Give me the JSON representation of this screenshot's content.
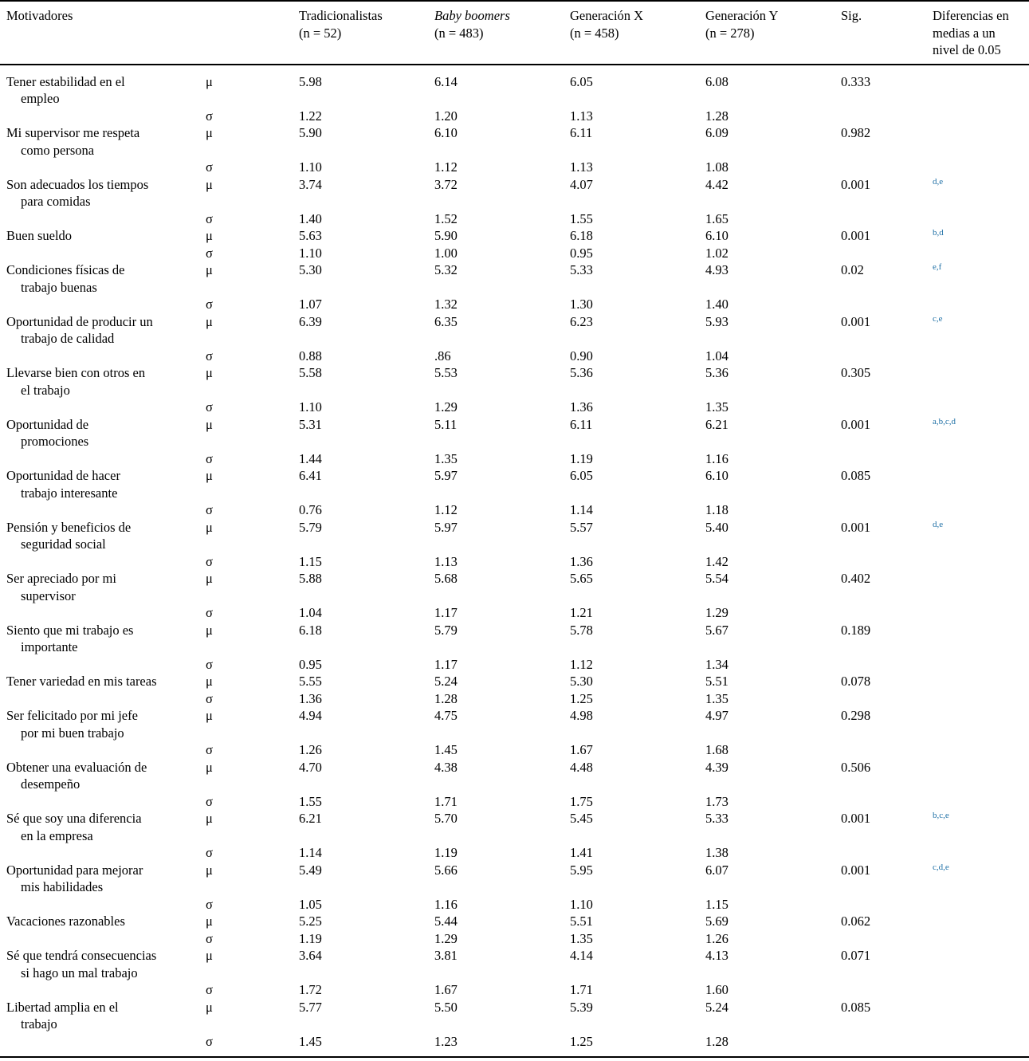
{
  "colors": {
    "accent_blue": "#1d6fa5",
    "text": "#000000",
    "background": "#ffffff"
  },
  "table": {
    "header": {
      "motivators": "Motivadores",
      "columns": [
        {
          "name": "Tradicionalistas",
          "n": "(n = 52)",
          "italic": false
        },
        {
          "name": "Baby boomers",
          "n": "(n = 483)",
          "italic": true
        },
        {
          "name": "Generación X",
          "n": "(n = 458)",
          "italic": false
        },
        {
          "name": "Generación Y",
          "n": "(n = 278)",
          "italic": false
        }
      ],
      "sig": "Sig.",
      "diff_lines": [
        "Diferencias en",
        "medias a un",
        "nivel de 0.05"
      ]
    },
    "symbols": {
      "mean": "μ",
      "sd": "σ"
    },
    "rows": [
      {
        "label": [
          "Tener estabilidad en el",
          "empleo"
        ],
        "mu": [
          "5.98",
          "6.14",
          "6.05",
          "6.08"
        ],
        "sigma": [
          "1.22",
          "1.20",
          "1.13",
          "1.28"
        ],
        "sig": "0.333",
        "diff": ""
      },
      {
        "label": [
          "Mi supervisor me respeta",
          "como persona"
        ],
        "mu": [
          "5.90",
          "6.10",
          "6.11",
          "6.09"
        ],
        "sigma": [
          "1.10",
          "1.12",
          "1.13",
          "1.08"
        ],
        "sig": "0.982",
        "diff": ""
      },
      {
        "label": [
          "Son adecuados los tiempos",
          "para comidas"
        ],
        "mu": [
          "3.74",
          "3.72",
          "4.07",
          "4.42"
        ],
        "sigma": [
          "1.40",
          "1.52",
          "1.55",
          "1.65"
        ],
        "sig": "0.001",
        "diff": "d,e"
      },
      {
        "label": [
          "Buen sueldo"
        ],
        "mu": [
          "5.63",
          "5.90",
          "6.18",
          "6.10"
        ],
        "sigma": [
          "1.10",
          "1.00",
          "0.95",
          "1.02"
        ],
        "sig": "0.001",
        "diff": "b,d"
      },
      {
        "label": [
          "Condiciones físicas de",
          "trabajo buenas"
        ],
        "mu": [
          "5.30",
          "5.32",
          "5.33",
          "4.93"
        ],
        "sigma": [
          "1.07",
          "1.32",
          "1.30",
          "1.40"
        ],
        "sig": "0.02",
        "diff": "e,f"
      },
      {
        "label": [
          "Oportunidad de producir un",
          "trabajo de calidad"
        ],
        "mu": [
          "6.39",
          "6.35",
          "6.23",
          "5.93"
        ],
        "sigma": [
          "0.88",
          ".86",
          "0.90",
          "1.04"
        ],
        "sig": "0.001",
        "diff": "c,e"
      },
      {
        "label": [
          "Llevarse bien con otros en",
          "el trabajo"
        ],
        "mu": [
          "5.58",
          "5.53",
          "5.36",
          "5.36"
        ],
        "sigma": [
          "1.10",
          "1.29",
          "1.36",
          "1.35"
        ],
        "sig": "0.305",
        "diff": ""
      },
      {
        "label": [
          "Oportunidad de",
          "promociones"
        ],
        "mu": [
          "5.31",
          "5.11",
          "6.11",
          "6.21"
        ],
        "sigma": [
          "1.44",
          "1.35",
          "1.19",
          "1.16"
        ],
        "sig": "0.001",
        "diff": "a,b,c,d"
      },
      {
        "label": [
          "Oportunidad de hacer",
          "trabajo interesante"
        ],
        "mu": [
          "6.41",
          "5.97",
          "6.05",
          "6.10"
        ],
        "sigma": [
          "0.76",
          "1.12",
          "1.14",
          "1.18"
        ],
        "sig": "0.085",
        "diff": ""
      },
      {
        "label": [
          "Pensión y beneficios de",
          "seguridad social"
        ],
        "mu": [
          "5.79",
          "5.97",
          "5.57",
          "5.40"
        ],
        "sigma": [
          "1.15",
          "1.13",
          "1.36",
          "1.42"
        ],
        "sig": "0.001",
        "diff": "d,e"
      },
      {
        "label": [
          "Ser apreciado por mi",
          "supervisor"
        ],
        "mu": [
          "5.88",
          "5.68",
          "5.65",
          "5.54"
        ],
        "sigma": [
          "1.04",
          "1.17",
          "1.21",
          "1.29"
        ],
        "sig": "0.402",
        "diff": ""
      },
      {
        "label": [
          "Siento que mi trabajo es",
          "importante"
        ],
        "mu": [
          "6.18",
          "5.79",
          "5.78",
          "5.67"
        ],
        "sigma": [
          "0.95",
          "1.17",
          "1.12",
          "1.34"
        ],
        "sig": "0.189",
        "diff": ""
      },
      {
        "label": [
          "Tener variedad en mis tareas"
        ],
        "mu": [
          "5.55",
          "5.24",
          "5.30",
          "5.51"
        ],
        "sigma": [
          "1.36",
          "1.28",
          "1.25",
          "1.35"
        ],
        "sig": "0.078",
        "diff": ""
      },
      {
        "label": [
          "Ser felicitado por mi jefe",
          "por mi buen trabajo"
        ],
        "mu": [
          "4.94",
          "4.75",
          "4.98",
          "4.97"
        ],
        "sigma": [
          "1.26",
          "1.45",
          "1.67",
          "1.68"
        ],
        "sig": "0.298",
        "diff": ""
      },
      {
        "label": [
          "Obtener una evaluación de",
          "desempeño"
        ],
        "mu": [
          "4.70",
          "4.38",
          "4.48",
          "4.39"
        ],
        "sigma": [
          "1.55",
          "1.71",
          "1.75",
          "1.73"
        ],
        "sig": "0.506",
        "diff": ""
      },
      {
        "label": [
          "Sé que soy una diferencia",
          "en la empresa"
        ],
        "mu": [
          "6.21",
          "5.70",
          "5.45",
          "5.33"
        ],
        "sigma": [
          "1.14",
          "1.19",
          "1.41",
          "1.38"
        ],
        "sig": "0.001",
        "diff": "b,c,e"
      },
      {
        "label": [
          "Oportunidad para mejorar",
          "mis habilidades"
        ],
        "mu": [
          "5.49",
          "5.66",
          "5.95",
          "6.07"
        ],
        "sigma": [
          "1.05",
          "1.16",
          "1.10",
          "1.15"
        ],
        "sig": "0.001",
        "diff": "c,d,e"
      },
      {
        "label": [
          "Vacaciones razonables"
        ],
        "mu": [
          "5.25",
          "5.44",
          "5.51",
          "5.69"
        ],
        "sigma": [
          "1.19",
          "1.29",
          "1.35",
          "1.26"
        ],
        "sig": "0.062",
        "diff": ""
      },
      {
        "label": [
          "Sé que tendrá consecuencias",
          "si hago un mal trabajo"
        ],
        "mu": [
          "3.64",
          "3.81",
          "4.14",
          "4.13"
        ],
        "sigma": [
          "1.72",
          "1.67",
          "1.71",
          "1.60"
        ],
        "sig": "0.071",
        "diff": ""
      },
      {
        "label": [
          "Libertad amplia en el",
          "trabajo"
        ],
        "mu": [
          "5.77",
          "5.50",
          "5.39",
          "5.24"
        ],
        "sigma": [
          "1.45",
          "1.23",
          "1.25",
          "1.28"
        ],
        "sig": "0.085",
        "diff": ""
      }
    ]
  }
}
